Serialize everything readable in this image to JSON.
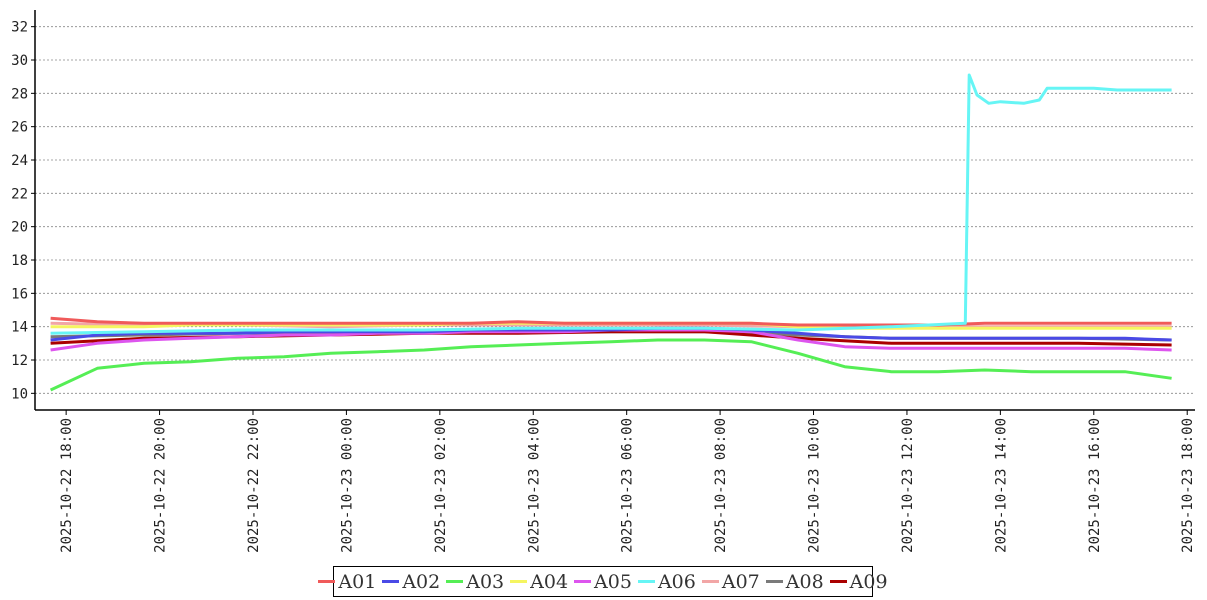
{
  "chart_data": {
    "type": "line",
    "title": "",
    "xlabel": "",
    "ylabel": "",
    "ylim": [
      9,
      33
    ],
    "yticks": [
      10,
      12,
      14,
      16,
      18,
      20,
      22,
      24,
      26,
      28,
      30,
      32
    ],
    "xlim": [
      "2025-10-22 17:20",
      "2025-10-23 18:10"
    ],
    "xticks": [
      "2025-10-22 18:00",
      "2025-10-22 20:00",
      "2025-10-22 22:00",
      "2025-10-23 00:00",
      "2025-10-23 02:00",
      "2025-10-23 04:00",
      "2025-10-23 06:00",
      "2025-10-23 08:00",
      "2025-10-23 10:00",
      "2025-10-23 12:00",
      "2025-10-23 14:00",
      "2025-10-23 16:00",
      "2025-10-23 18:00"
    ],
    "grid": "horizontal-dotted",
    "legend_position": "bottom",
    "series": [
      {
        "name": "A01",
        "color": "#f05a5a",
        "x": [
          "2025-10-22 17:40",
          "2025-10-22 18:40",
          "2025-10-22 19:40",
          "2025-10-22 20:40",
          "2025-10-22 21:40",
          "2025-10-22 22:40",
          "2025-10-22 23:40",
          "2025-10-23 00:40",
          "2025-10-23 01:40",
          "2025-10-23 02:40",
          "2025-10-23 03:40",
          "2025-10-23 04:40",
          "2025-10-23 05:40",
          "2025-10-23 06:40",
          "2025-10-23 07:40",
          "2025-10-23 08:40",
          "2025-10-23 09:40",
          "2025-10-23 10:40",
          "2025-10-23 11:40",
          "2025-10-23 12:40",
          "2025-10-23 13:40",
          "2025-10-23 14:40",
          "2025-10-23 15:40",
          "2025-10-23 16:40",
          "2025-10-23 17:40"
        ],
        "values": [
          14.5,
          14.3,
          14.2,
          14.2,
          14.2,
          14.2,
          14.2,
          14.2,
          14.2,
          14.2,
          14.3,
          14.2,
          14.2,
          14.2,
          14.2,
          14.2,
          14.1,
          14.1,
          14.1,
          14.1,
          14.2,
          14.2,
          14.2,
          14.2,
          14.2
        ]
      },
      {
        "name": "A02",
        "color": "#4a4ae6",
        "x": [
          "2025-10-22 17:40",
          "2025-10-22 18:40",
          "2025-10-22 19:40",
          "2025-10-22 20:40",
          "2025-10-22 21:40",
          "2025-10-22 22:40",
          "2025-10-22 23:40",
          "2025-10-23 00:40",
          "2025-10-23 01:40",
          "2025-10-23 02:40",
          "2025-10-23 03:40",
          "2025-10-23 04:40",
          "2025-10-23 05:40",
          "2025-10-23 06:40",
          "2025-10-23 07:40",
          "2025-10-23 08:40",
          "2025-10-23 09:40",
          "2025-10-23 10:40",
          "2025-10-23 11:40",
          "2025-10-23 12:40",
          "2025-10-23 13:40",
          "2025-10-23 14:40",
          "2025-10-23 15:40",
          "2025-10-23 16:40",
          "2025-10-23 17:40"
        ],
        "values": [
          13.2,
          13.5,
          13.6,
          13.6,
          13.6,
          13.7,
          13.7,
          13.7,
          13.7,
          13.8,
          13.8,
          13.8,
          13.8,
          13.9,
          13.9,
          13.8,
          13.6,
          13.4,
          13.3,
          13.3,
          13.3,
          13.3,
          13.3,
          13.3,
          13.2
        ]
      },
      {
        "name": "A03",
        "color": "#55ee55",
        "x": [
          "2025-10-22 17:40",
          "2025-10-22 18:40",
          "2025-10-22 19:40",
          "2025-10-22 20:40",
          "2025-10-22 21:40",
          "2025-10-22 22:40",
          "2025-10-22 23:40",
          "2025-10-23 00:40",
          "2025-10-23 01:40",
          "2025-10-23 02:40",
          "2025-10-23 03:40",
          "2025-10-23 04:40",
          "2025-10-23 05:40",
          "2025-10-23 06:40",
          "2025-10-23 07:40",
          "2025-10-23 08:40",
          "2025-10-23 09:40",
          "2025-10-23 10:40",
          "2025-10-23 11:40",
          "2025-10-23 12:40",
          "2025-10-23 13:40",
          "2025-10-23 14:40",
          "2025-10-23 15:40",
          "2025-10-23 16:40",
          "2025-10-23 17:40"
        ],
        "values": [
          10.2,
          11.5,
          11.8,
          11.9,
          12.1,
          12.2,
          12.4,
          12.5,
          12.6,
          12.8,
          12.9,
          13.0,
          13.1,
          13.2,
          13.2,
          13.1,
          12.4,
          11.6,
          11.3,
          11.3,
          11.4,
          11.3,
          11.3,
          11.3,
          10.9
        ]
      },
      {
        "name": "A04",
        "color": "#f5f560",
        "x": [
          "2025-10-22 17:40",
          "2025-10-22 18:40",
          "2025-10-22 19:40",
          "2025-10-22 20:40",
          "2025-10-22 21:40",
          "2025-10-22 22:40",
          "2025-10-22 23:40",
          "2025-10-23 00:40",
          "2025-10-23 01:40",
          "2025-10-23 02:40",
          "2025-10-23 03:40",
          "2025-10-23 04:40",
          "2025-10-23 05:40",
          "2025-10-23 06:40",
          "2025-10-23 07:40",
          "2025-10-23 08:40",
          "2025-10-23 09:40",
          "2025-10-23 10:40",
          "2025-10-23 11:40",
          "2025-10-23 12:40",
          "2025-10-23 13:40",
          "2025-10-23 14:40",
          "2025-10-23 15:40",
          "2025-10-23 16:40",
          "2025-10-23 17:40"
        ],
        "values": [
          14.0,
          14.0,
          14.0,
          14.1,
          14.1,
          14.1,
          14.1,
          14.1,
          14.1,
          14.2,
          14.2,
          14.2,
          14.2,
          14.2,
          14.2,
          14.2,
          14.0,
          13.9,
          13.9,
          13.9,
          13.9,
          13.9,
          13.9,
          13.9,
          13.9
        ]
      },
      {
        "name": "A05",
        "color": "#dd55ee",
        "x": [
          "2025-10-22 17:40",
          "2025-10-22 18:40",
          "2025-10-22 19:40",
          "2025-10-22 20:40",
          "2025-10-22 21:40",
          "2025-10-22 22:40",
          "2025-10-22 23:40",
          "2025-10-23 00:40",
          "2025-10-23 01:40",
          "2025-10-23 02:40",
          "2025-10-23 03:40",
          "2025-10-23 04:40",
          "2025-10-23 05:40",
          "2025-10-23 06:40",
          "2025-10-23 07:40",
          "2025-10-23 08:40",
          "2025-10-23 09:40",
          "2025-10-23 10:40",
          "2025-10-23 11:40",
          "2025-10-23 12:40",
          "2025-10-23 13:40",
          "2025-10-23 14:40",
          "2025-10-23 15:40",
          "2025-10-23 16:40",
          "2025-10-23 17:40"
        ],
        "values": [
          12.6,
          13.0,
          13.2,
          13.3,
          13.4,
          13.5,
          13.5,
          13.6,
          13.6,
          13.7,
          13.7,
          13.7,
          13.8,
          13.8,
          13.8,
          13.7,
          13.2,
          12.8,
          12.7,
          12.7,
          12.7,
          12.7,
          12.7,
          12.7,
          12.6
        ]
      },
      {
        "name": "A06",
        "color": "#66f5f5",
        "x": [
          "2025-10-22 17:40",
          "2025-10-22 19:40",
          "2025-10-22 21:40",
          "2025-10-22 23:40",
          "2025-10-23 01:40",
          "2025-10-23 03:40",
          "2025-10-23 05:40",
          "2025-10-23 07:40",
          "2025-10-23 09:40",
          "2025-10-23 11:40",
          "2025-10-23 13:15",
          "2025-10-23 13:20",
          "2025-10-23 13:30",
          "2025-10-23 13:45",
          "2025-10-23 14:00",
          "2025-10-23 14:30",
          "2025-10-23 14:50",
          "2025-10-23 15:00",
          "2025-10-23 16:00",
          "2025-10-23 16:30",
          "2025-10-23 17:00",
          "2025-10-23 17:40"
        ],
        "values": [
          13.6,
          13.7,
          13.8,
          13.8,
          13.8,
          13.9,
          13.9,
          13.9,
          13.8,
          14.0,
          14.2,
          29.1,
          27.9,
          27.4,
          27.5,
          27.4,
          27.6,
          28.3,
          28.3,
          28.2,
          28.2,
          28.2
        ]
      },
      {
        "name": "A07",
        "color": "#f2a6a6",
        "x": [
          "2025-10-22 17:40",
          "2025-10-22 19:40",
          "2025-10-22 21:40",
          "2025-10-22 23:40",
          "2025-10-23 01:40",
          "2025-10-23 03:40",
          "2025-10-23 05:40",
          "2025-10-23 07:40",
          "2025-10-23 09:40",
          "2025-10-23 11:40",
          "2025-10-23 13:40",
          "2025-10-23 15:40",
          "2025-10-23 17:40"
        ],
        "values": [
          14.2,
          14.1,
          14.1,
          14.0,
          14.1,
          14.1,
          14.1,
          14.1,
          14.0,
          14.0,
          14.0,
          14.0,
          14.0
        ]
      },
      {
        "name": "A08",
        "color": "#7a7a7a",
        "x": [
          "2025-10-22 17:40",
          "2025-10-22 19:40",
          "2025-10-22 21:40",
          "2025-10-22 23:40",
          "2025-10-23 01:40",
          "2025-10-23 03:40",
          "2025-10-23 05:40",
          "2025-10-23 07:40",
          "2025-10-23 09:40",
          "2025-10-23 11:40",
          "2025-10-23 13:40",
          "2025-10-23 15:40",
          "2025-10-23 17:40"
        ],
        "values": [
          13.4,
          13.5,
          13.6,
          13.6,
          13.6,
          13.7,
          13.7,
          13.7,
          13.5,
          13.3,
          13.3,
          13.3,
          13.2
        ]
      },
      {
        "name": "A09",
        "color": "#aa0000",
        "x": [
          "2025-10-22 17:40",
          "2025-10-22 19:40",
          "2025-10-22 21:40",
          "2025-10-22 23:40",
          "2025-10-23 01:40",
          "2025-10-23 03:40",
          "2025-10-23 05:40",
          "2025-10-23 07:40",
          "2025-10-23 09:40",
          "2025-10-23 11:40",
          "2025-10-23 13:40",
          "2025-10-23 15:40",
          "2025-10-23 17:40"
        ],
        "values": [
          13.0,
          13.3,
          13.4,
          13.5,
          13.6,
          13.6,
          13.7,
          13.7,
          13.3,
          13.0,
          13.0,
          13.0,
          12.9
        ]
      }
    ]
  }
}
